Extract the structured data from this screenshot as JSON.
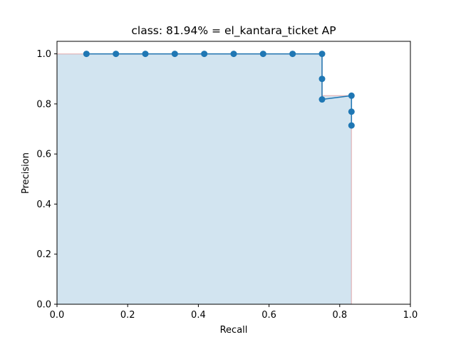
{
  "chart_data": {
    "type": "line",
    "title": "class: 81.94% = el_kantara_ticket AP",
    "xlabel": "Recall",
    "ylabel": "Precision",
    "xlim": [
      0,
      1
    ],
    "ylim": [
      0,
      1.05
    ],
    "grid": false,
    "legend": "none",
    "xticks": [
      "0.0",
      "0.2",
      "0.4",
      "0.6",
      "0.8",
      "1.0"
    ],
    "yticks": [
      "0.0",
      "0.2",
      "0.4",
      "0.6",
      "0.8",
      "1.0"
    ],
    "xtick_values": [
      0,
      0.2,
      0.4,
      0.6,
      0.8,
      1.0
    ],
    "ytick_values": [
      0,
      0.2,
      0.4,
      0.6,
      0.8,
      1.0
    ],
    "series": [
      {
        "type": "line-markers",
        "color": "#1f77b4",
        "x": [
          0.0833,
          0.1667,
          0.25,
          0.3333,
          0.4167,
          0.5,
          0.5833,
          0.6667,
          0.75,
          0.75,
          0.75,
          0.8333,
          0.8333,
          0.8333
        ],
        "y": [
          1.0,
          1.0,
          1.0,
          1.0,
          1.0,
          1.0,
          1.0,
          1.0,
          1.0,
          0.9,
          0.818,
          0.833,
          0.769,
          0.714
        ]
      },
      {
        "type": "area-step",
        "fill_color": "#1f77b4",
        "edge_color": "#d62728",
        "x": [
          0.0,
          0.75,
          0.75,
          0.8333,
          0.8333
        ],
        "y": [
          1.0,
          1.0,
          0.833,
          0.833,
          0.0
        ]
      }
    ]
  }
}
